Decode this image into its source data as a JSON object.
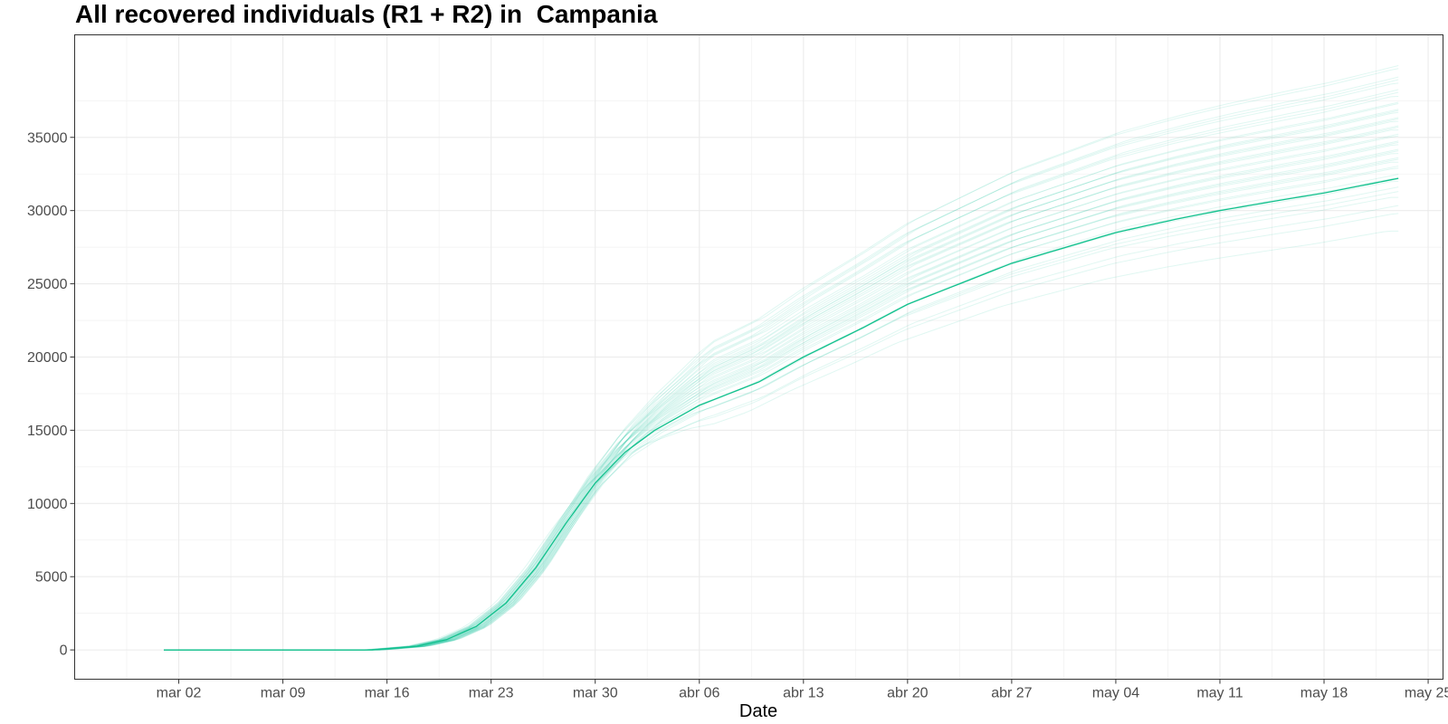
{
  "chart_data": {
    "type": "line",
    "title": "All recovered individuals (R1 + R2) in  Campania",
    "xlabel": "Date",
    "ylabel": "",
    "x_range": [
      "2020-02-24",
      "2020-05-26"
    ],
    "ylim": [
      -2000,
      42000
    ],
    "x_ticks": [
      {
        "date": "2020-03-02",
        "label": "mar 02"
      },
      {
        "date": "2020-03-09",
        "label": "mar 09"
      },
      {
        "date": "2020-03-16",
        "label": "mar 16"
      },
      {
        "date": "2020-03-23",
        "label": "mar 23"
      },
      {
        "date": "2020-03-30",
        "label": "mar 30"
      },
      {
        "date": "2020-04-06",
        "label": "abr 06"
      },
      {
        "date": "2020-04-13",
        "label": "abr 13"
      },
      {
        "date": "2020-04-20",
        "label": "abr 20"
      },
      {
        "date": "2020-04-27",
        "label": "abr 27"
      },
      {
        "date": "2020-05-04",
        "label": "may 04"
      },
      {
        "date": "2020-05-11",
        "label": "may 11"
      },
      {
        "date": "2020-05-18",
        "label": "may 18"
      },
      {
        "date": "2020-05-25",
        "label": "may 25"
      }
    ],
    "y_ticks": [
      0,
      5000,
      10000,
      15000,
      20000,
      25000,
      30000,
      35000
    ],
    "grid": true,
    "legend": "none",
    "colors": {
      "main": "#12c18d",
      "ensemble": "#26c9a0"
    },
    "main_series": {
      "x": [
        "2020-03-01",
        "2020-03-15",
        "2020-03-16",
        "2020-03-18",
        "2020-03-20",
        "2020-03-22",
        "2020-03-24",
        "2020-03-26",
        "2020-03-28",
        "2020-03-30",
        "2020-04-01",
        "2020-04-03",
        "2020-04-06",
        "2020-04-10",
        "2020-04-13",
        "2020-04-17",
        "2020-04-20",
        "2020-04-24",
        "2020-04-27",
        "2020-05-01",
        "2020-05-04",
        "2020-05-08",
        "2020-05-11",
        "2020-05-15",
        "2020-05-18",
        "2020-05-23"
      ],
      "y": [
        0,
        0,
        80,
        250,
        700,
        1600,
        3200,
        5600,
        8600,
        11400,
        13500,
        15000,
        16700,
        18300,
        20000,
        22000,
        23600,
        25200,
        26400,
        27600,
        28500,
        29400,
        30000,
        30700,
        31200,
        32200
      ]
    },
    "ensemble_final_values": [
      28600,
      29800,
      30400,
      30900,
      31300,
      31700,
      32000,
      32300,
      32600,
      32900,
      33100,
      33300,
      33500,
      33700,
      33900,
      34100,
      34300,
      34500,
      34700,
      34900,
      35100,
      35300,
      35500,
      35700,
      35900,
      36100,
      36300,
      36500,
      36700,
      36900,
      37100,
      37300,
      37500,
      37800,
      38100,
      38400,
      38700,
      39000,
      39300,
      39700,
      40000
    ]
  }
}
